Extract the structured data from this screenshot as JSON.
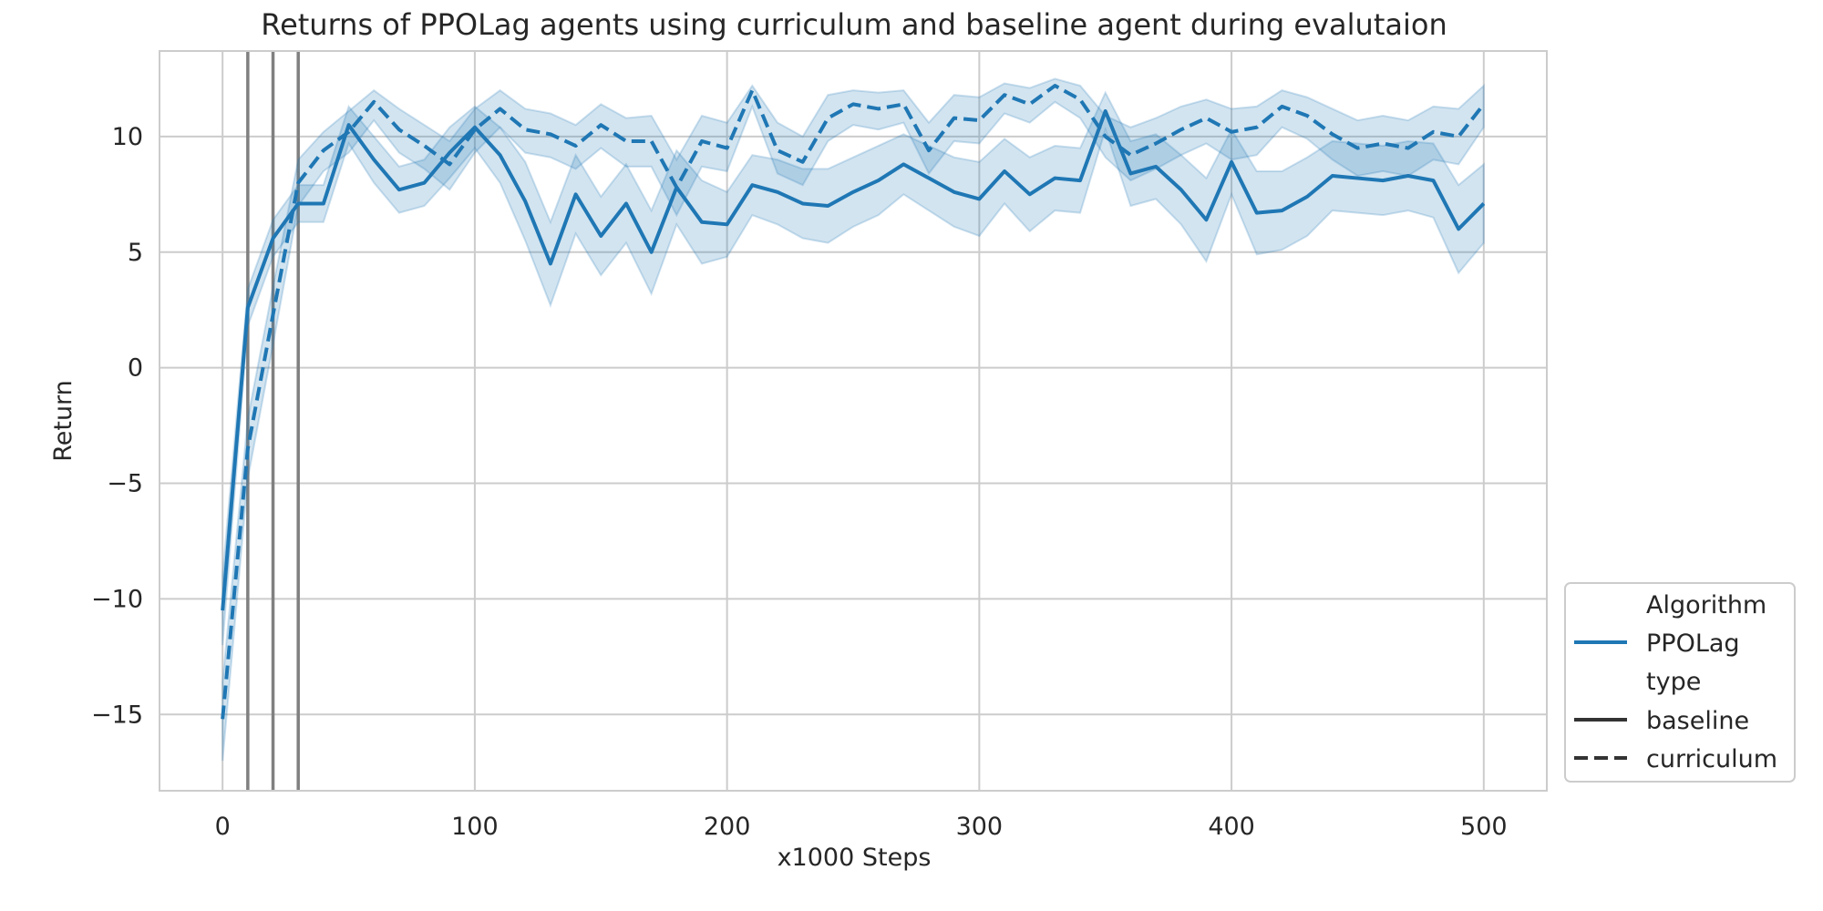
{
  "chart_data": {
    "type": "line",
    "title": "Returns of PPOLag agents using curriculum and baseline agent during evalutaion",
    "xlabel": "x1000 Steps",
    "ylabel": "Return",
    "xlim": [
      -25,
      525
    ],
    "ylim": [
      -18.3,
      13.7
    ],
    "xticks": [
      0,
      100,
      200,
      300,
      400,
      500
    ],
    "yticks": [
      10,
      5,
      0,
      -5,
      -10,
      -15
    ],
    "ytick_labels": [
      "10",
      "5",
      "0",
      "−5",
      "−10",
      "−15"
    ],
    "grid": true,
    "legend_position": "lower-right",
    "color": "#1f77b4",
    "vertical_lines": [
      10,
      20,
      30
    ],
    "vertical_line_color": "#808080",
    "x": [
      0,
      10,
      20,
      30,
      40,
      50,
      60,
      70,
      80,
      90,
      100,
      110,
      120,
      130,
      140,
      150,
      160,
      170,
      180,
      190,
      200,
      210,
      220,
      230,
      240,
      250,
      260,
      270,
      280,
      290,
      300,
      310,
      320,
      330,
      340,
      350,
      360,
      370,
      380,
      390,
      400,
      410,
      420,
      430,
      440,
      450,
      460,
      470,
      480,
      490,
      500
    ],
    "series": [
      {
        "type_value": "baseline",
        "style": "solid",
        "values": [
          -10.5,
          2.6,
          5.6,
          7.1,
          7.1,
          10.5,
          9.0,
          7.7,
          8.0,
          9.3,
          10.4,
          9.2,
          7.2,
          4.5,
          7.5,
          5.7,
          7.1,
          5.0,
          7.8,
          6.3,
          6.2,
          7.9,
          7.6,
          7.1,
          7.0,
          7.6,
          8.1,
          8.8,
          8.2,
          7.6,
          7.3,
          8.5,
          7.5,
          8.2,
          8.1,
          11.1,
          8.4,
          8.7,
          7.7,
          6.4,
          8.9,
          6.7,
          6.8,
          7.4,
          8.3,
          8.2,
          8.1,
          8.3,
          8.1,
          6.0,
          7.1
        ],
        "lower": [
          -12.0,
          1.8,
          4.8,
          6.3,
          6.3,
          9.7,
          8.0,
          6.7,
          7.0,
          8.2,
          9.5,
          8.0,
          5.5,
          2.7,
          5.8,
          4.0,
          5.4,
          3.2,
          6.2,
          4.5,
          4.8,
          6.6,
          6.2,
          5.6,
          5.4,
          6.1,
          6.6,
          7.5,
          6.8,
          6.1,
          5.7,
          7.1,
          5.9,
          6.8,
          6.7,
          10.3,
          7.0,
          7.3,
          6.2,
          4.6,
          7.5,
          4.9,
          5.1,
          5.7,
          6.8,
          6.7,
          6.6,
          6.8,
          6.5,
          4.1,
          5.4
        ],
        "upper": [
          -9.0,
          3.4,
          6.4,
          7.9,
          7.9,
          11.3,
          10.0,
          8.7,
          9.0,
          10.4,
          11.3,
          10.4,
          8.9,
          6.3,
          9.2,
          7.4,
          8.8,
          6.8,
          9.4,
          8.1,
          7.6,
          9.2,
          9.0,
          8.6,
          8.6,
          9.1,
          9.6,
          10.1,
          9.6,
          9.1,
          8.9,
          9.9,
          9.1,
          9.6,
          9.5,
          11.9,
          9.8,
          10.1,
          9.2,
          8.2,
          10.3,
          8.5,
          8.5,
          9.1,
          9.8,
          9.7,
          9.6,
          9.8,
          9.7,
          7.9,
          8.8
        ]
      },
      {
        "type_value": "curriculum",
        "style": "dashed",
        "values": [
          -15.2,
          -3.5,
          2.3,
          8.0,
          9.4,
          10.2,
          11.5,
          10.3,
          9.6,
          8.8,
          10.3,
          11.2,
          10.3,
          10.1,
          9.6,
          10.5,
          9.8,
          9.8,
          7.8,
          9.8,
          9.5,
          12.0,
          9.4,
          8.9,
          10.8,
          11.4,
          11.2,
          11.4,
          9.4,
          10.8,
          10.7,
          11.8,
          11.4,
          12.2,
          11.6,
          10.0,
          9.2,
          9.7,
          10.3,
          10.8,
          10.2,
          10.4,
          11.3,
          10.9,
          10.1,
          9.5,
          9.7,
          9.5,
          10.2,
          10.0,
          11.4
        ],
        "lower": [
          -17.0,
          -4.8,
          1.0,
          7.0,
          8.5,
          9.3,
          10.7,
          9.3,
          8.6,
          7.7,
          9.3,
          10.4,
          9.3,
          9.1,
          8.6,
          9.5,
          8.7,
          8.7,
          6.6,
          8.7,
          8.5,
          11.3,
          8.4,
          7.9,
          9.8,
          10.5,
          10.3,
          10.6,
          8.4,
          9.8,
          9.7,
          11.0,
          10.6,
          11.5,
          10.8,
          9.1,
          8.1,
          8.6,
          9.2,
          9.7,
          9.0,
          9.2,
          10.4,
          9.9,
          9.0,
          8.3,
          8.5,
          8.3,
          9.0,
          8.8,
          10.4
        ],
        "upper": [
          -13.6,
          -2.2,
          3.5,
          9.0,
          10.2,
          11.1,
          12.0,
          11.2,
          10.5,
          9.8,
          11.2,
          12.0,
          11.2,
          11.0,
          10.5,
          11.4,
          10.8,
          10.9,
          9.0,
          10.9,
          10.6,
          12.2,
          10.6,
          10.0,
          11.8,
          12.0,
          11.9,
          12.0,
          10.6,
          11.8,
          11.7,
          12.3,
          12.1,
          12.5,
          12.2,
          10.9,
          10.4,
          10.8,
          11.3,
          11.6,
          11.2,
          11.3,
          12.0,
          11.7,
          11.2,
          10.7,
          10.9,
          10.7,
          11.3,
          11.2,
          12.2
        ]
      }
    ],
    "legend": {
      "hue_title": "Algorithm",
      "hue_entries": [
        "PPOLag"
      ],
      "style_title": "type",
      "style_entries": [
        "baseline",
        "curriculum"
      ]
    }
  }
}
